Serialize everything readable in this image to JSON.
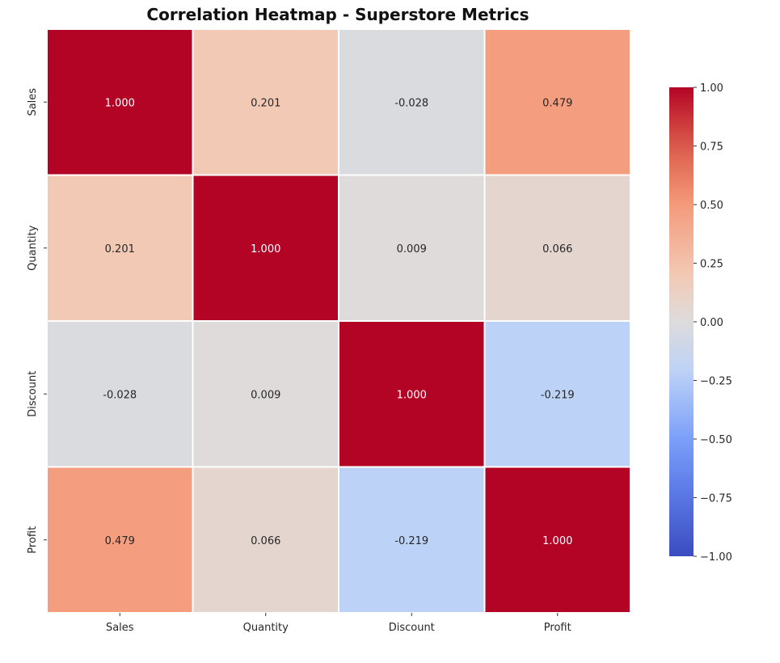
{
  "chart_data": {
    "type": "heatmap",
    "title": "Correlation Heatmap - Superstore Metrics",
    "x_labels": [
      "Sales",
      "Quantity",
      "Discount",
      "Profit"
    ],
    "y_labels": [
      "Sales",
      "Quantity",
      "Discount",
      "Profit"
    ],
    "values": [
      [
        1.0,
        0.201,
        -0.028,
        0.479
      ],
      [
        0.201,
        1.0,
        0.009,
        0.066
      ],
      [
        -0.028,
        0.009,
        1.0,
        -0.219
      ],
      [
        0.479,
        0.066,
        -0.219,
        1.0
      ]
    ],
    "annotation_format": "3 decimals",
    "colormap": "coolwarm",
    "vmin": -1.0,
    "vmax": 1.0,
    "colorbar_ticks": [
      "1.00",
      "0.75",
      "0.50",
      "0.25",
      "0.00",
      "−0.25",
      "−0.50",
      "−0.75",
      "−1.00"
    ],
    "colorbar_tick_values": [
      1.0,
      0.75,
      0.5,
      0.25,
      0.0,
      -0.25,
      -0.5,
      -0.75,
      -1.0
    ],
    "cell_border_color": "#ffffff"
  }
}
